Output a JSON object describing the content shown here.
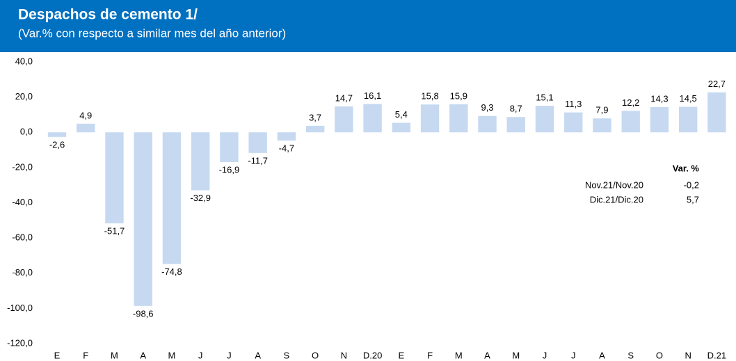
{
  "chart_data": {
    "type": "bar",
    "title": "Despachos de cemento 1/",
    "subtitle": "(Var.% con respecto a similar mes del año anterior)",
    "categories": [
      "E",
      "F",
      "M",
      "A",
      "M",
      "J",
      "J",
      "A",
      "S",
      "O",
      "N",
      "D.20",
      "E",
      "F",
      "M",
      "A",
      "M",
      "J",
      "J",
      "A",
      "S",
      "O",
      "N",
      "D.21"
    ],
    "values": [
      -2.6,
      4.9,
      -51.7,
      -98.6,
      -74.8,
      -32.9,
      -16.9,
      -11.7,
      -4.7,
      3.7,
      14.7,
      16.1,
      5.4,
      15.8,
      15.9,
      9.3,
      8.7,
      15.1,
      11.3,
      7.9,
      12.2,
      14.3,
      14.5,
      22.7
    ],
    "value_labels": [
      "-2,6",
      "4,9",
      "-51,7",
      "-98,6",
      "-74,8",
      "-32,9",
      "-16,9",
      "-11,7",
      "-4,7",
      "3,7",
      "14,7",
      "16,1",
      "5,4",
      "15,8",
      "15,9",
      "9,3",
      "8,7",
      "15,1",
      "11,3",
      "7,9",
      "12,2",
      "14,3",
      "14,5",
      "22,7"
    ],
    "color": "#c6d9f1",
    "ylim": [
      -120,
      40
    ],
    "yticks": [
      {
        "value": -120,
        "label": "-120,0"
      },
      {
        "value": -100,
        "label": "-100,0"
      },
      {
        "value": -80,
        "label": "-80,0"
      },
      {
        "value": -60,
        "label": "-60,0"
      },
      {
        "value": -40,
        "label": "-40,0"
      },
      {
        "value": -20,
        "label": "-20,0"
      },
      {
        "value": 0,
        "label": "0,0"
      },
      {
        "value": 20,
        "label": "20,0"
      },
      {
        "value": 40,
        "label": "40,0"
      }
    ],
    "grid": false,
    "inset": {
      "header": "Var. %",
      "rows": [
        [
          "Nov.21/Nov.20",
          "-0,2"
        ],
        [
          "Dic.21/Dic.20",
          "5,7"
        ]
      ]
    }
  }
}
